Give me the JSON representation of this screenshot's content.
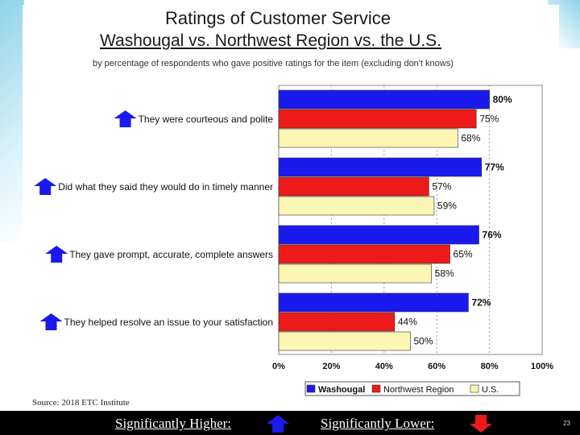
{
  "title": "Ratings of Customer Service",
  "subtitle": "Washougal vs. Northwest Region vs. the U.S.",
  "note": "by percentage of respondents who gave positive ratings for the item (excluding don't knows)",
  "source": "Source: 2018 ETC Institute",
  "footer": {
    "higher_label": "Significantly Higher:",
    "lower_label": "Significantly Lower:",
    "page_number": "23"
  },
  "colors": {
    "washougal": "#1a1aee",
    "northwest": "#ee1a1a",
    "us": "#fbf6b4",
    "up_arrow": "#1a1aee",
    "down_arrow": "#ee1a1a"
  },
  "chart_data": {
    "type": "bar",
    "orientation": "horizontal",
    "title": "Ratings of Customer Service",
    "categories": [
      "They were courteous and polite",
      "Did what they said they would do in timely manner",
      "They gave prompt, accurate, complete answers",
      "They helped resolve an issue to your satisfaction"
    ],
    "category_markers": [
      "up-arrow",
      "up-arrow",
      "up-arrow",
      "up-arrow"
    ],
    "series": [
      {
        "name": "Washougal",
        "values": [
          80,
          77,
          76,
          72
        ],
        "labels": [
          "80%",
          "77%",
          "76%",
          "72%"
        ]
      },
      {
        "name": "Northwest Region",
        "values": [
          75,
          57,
          65,
          44
        ],
        "labels": [
          "75%",
          "57%",
          "65%",
          "44%"
        ]
      },
      {
        "name": "U.S.",
        "values": [
          68,
          59,
          58,
          50
        ],
        "labels": [
          "68%",
          "59%",
          "58%",
          "50%"
        ]
      }
    ],
    "x_ticks": [
      "0%",
      "20%",
      "40%",
      "60%",
      "80%",
      "100%"
    ],
    "xlim": [
      0,
      100
    ],
    "grid": true,
    "legend": [
      "Washougal",
      "Northwest Region",
      "U.S."
    ],
    "legend_position": "bottom"
  }
}
